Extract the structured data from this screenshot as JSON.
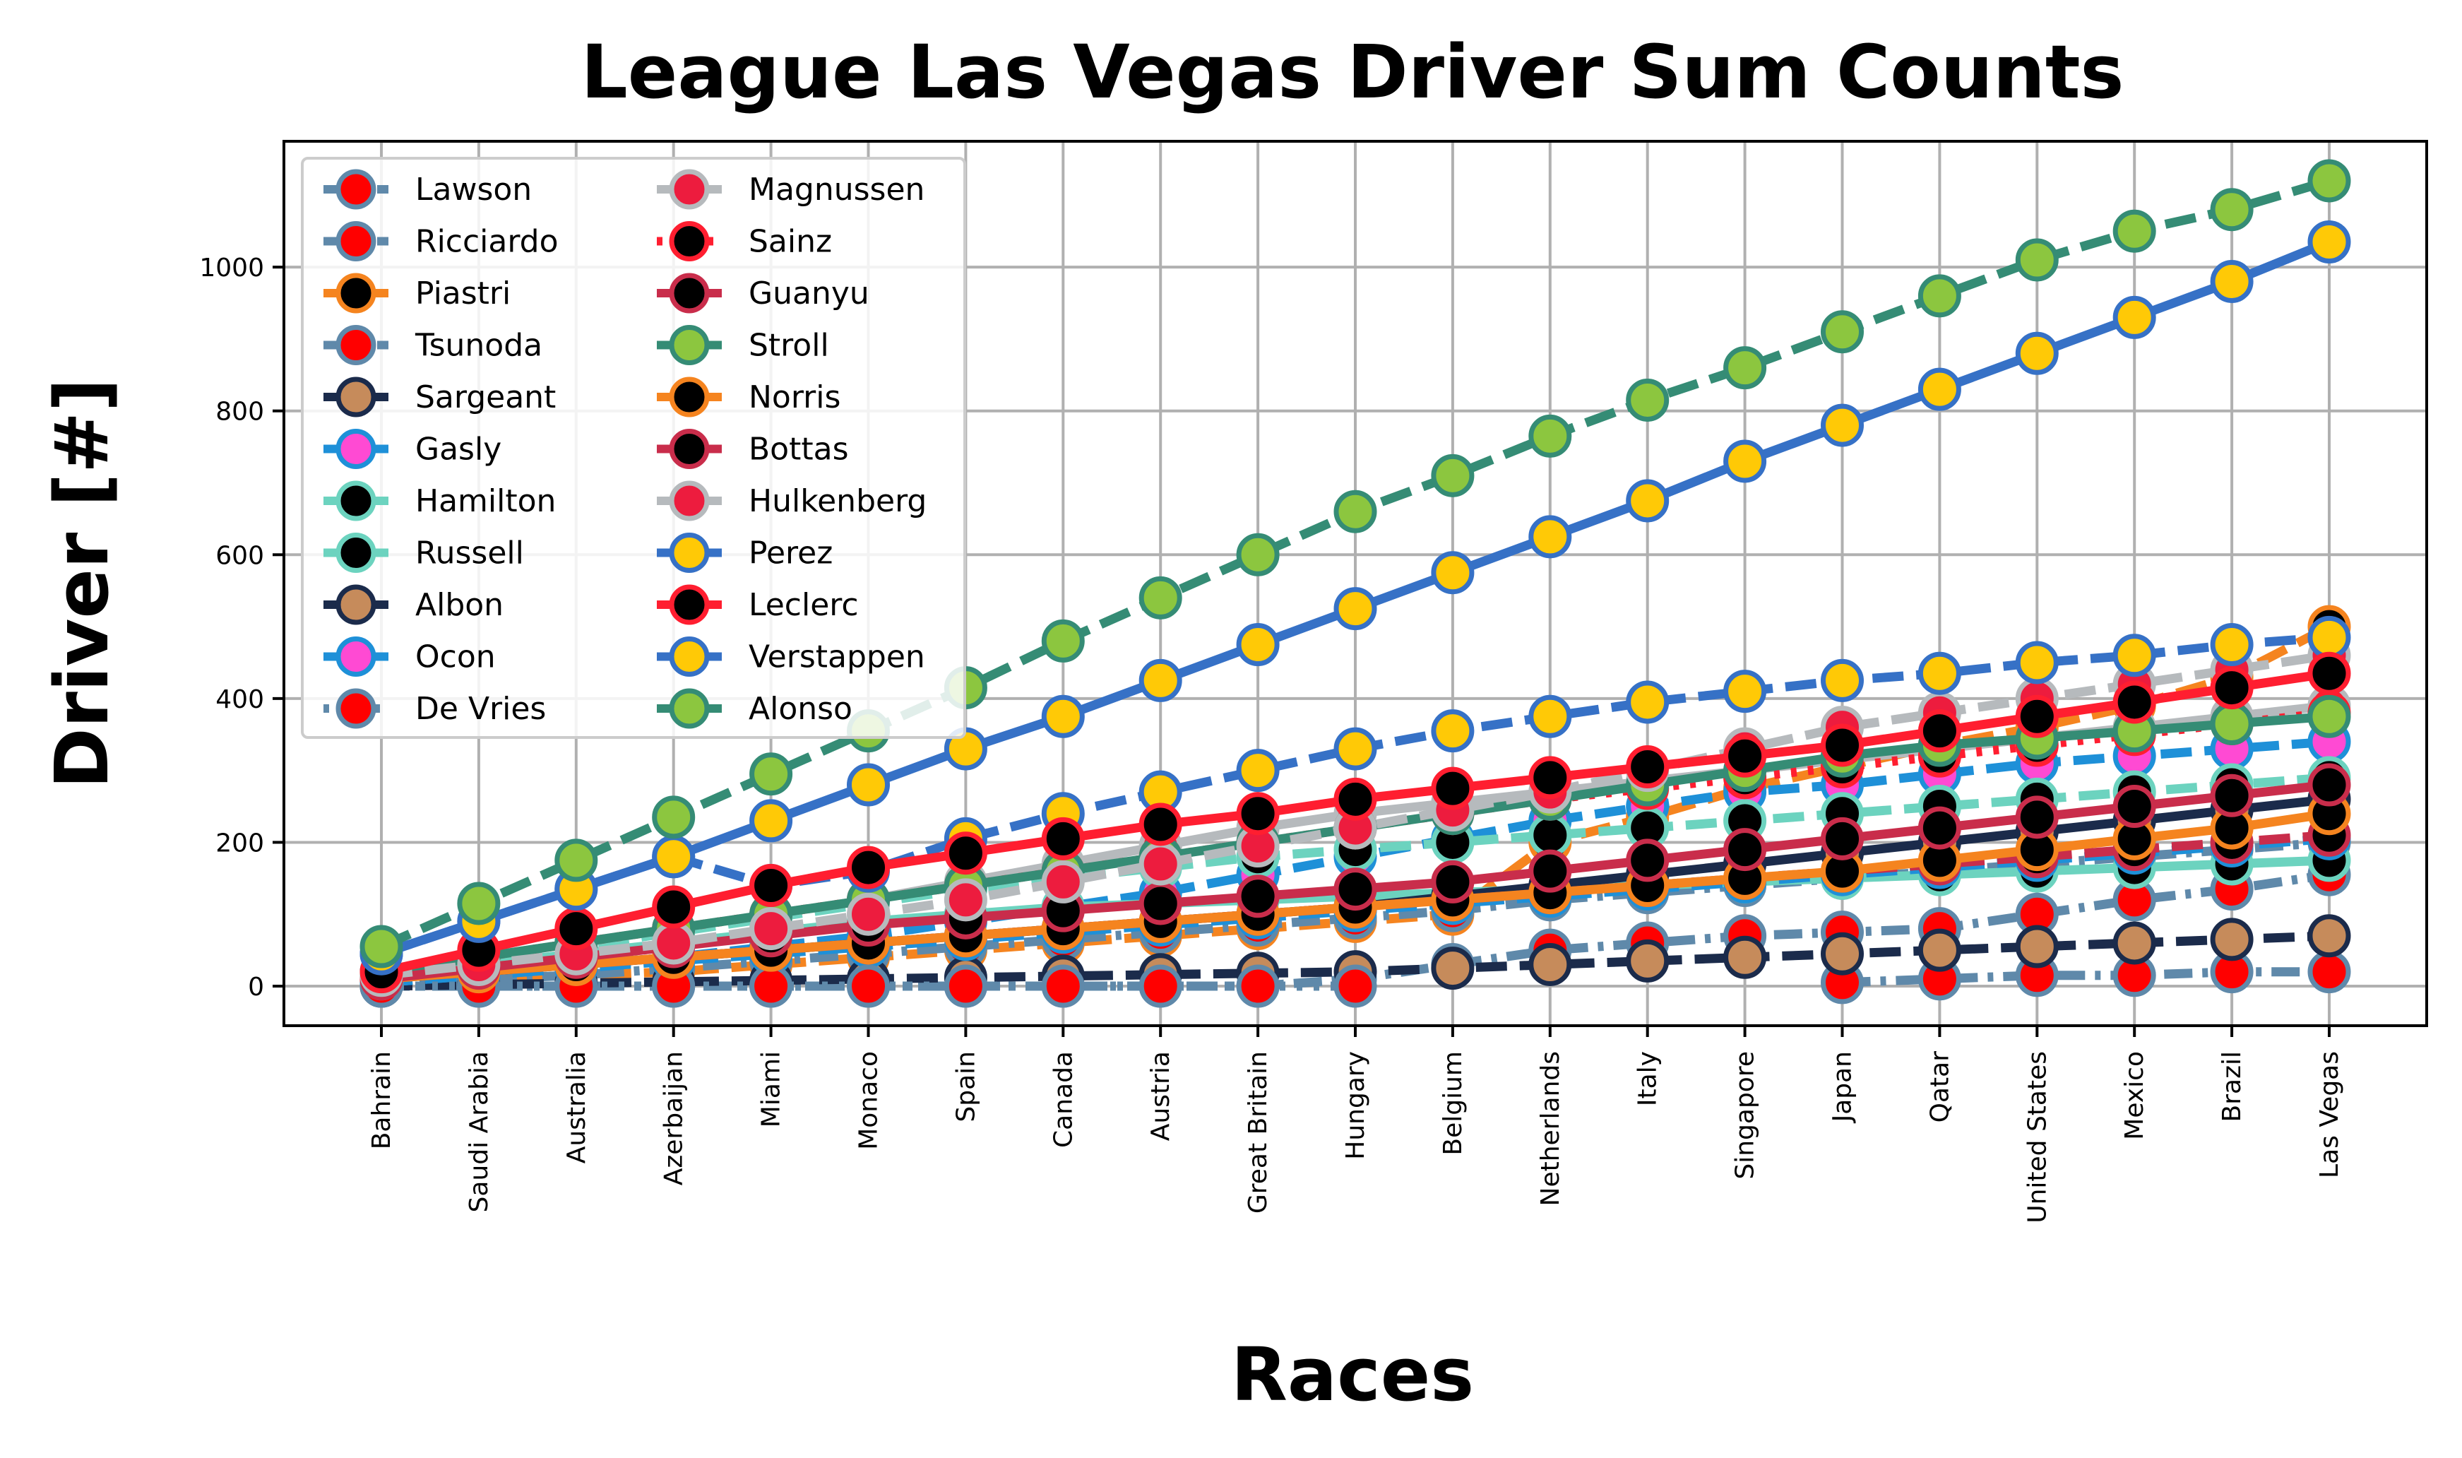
{
  "chart_data": {
    "type": "line",
    "title": "League Las Vegas Driver Sum Counts",
    "xlabel": "Races",
    "ylabel": "Driver [#]",
    "ylim": [
      -55,
      1175
    ],
    "yticks": [
      0,
      200,
      400,
      600,
      800,
      1000
    ],
    "grid": true,
    "legend_position": "top-left",
    "categories": [
      "Bahrain",
      "Saudi Arabia",
      "Australia",
      "Azerbaijan",
      "Miami",
      "Monaco",
      "Spain",
      "Canada",
      "Austria",
      "Great Britain",
      "Hungary",
      "Belgium",
      "Netherlands",
      "Italy",
      "Singapore",
      "Japan",
      "Qatar",
      "United States",
      "Mexico",
      "Brazil",
      "Las Vegas"
    ],
    "series": [
      {
        "name": "Lawson",
        "line": "#5f89aa",
        "marker": "#ff0000",
        "edge": "#5f89aa",
        "dash": "dashdot",
        "values": [
          null,
          null,
          null,
          null,
          null,
          null,
          null,
          null,
          null,
          null,
          null,
          null,
          null,
          null,
          null,
          5,
          10,
          15,
          15,
          20,
          20
        ]
      },
      {
        "name": "Ricciardo",
        "line": "#5f89aa",
        "marker": "#ff0000",
        "edge": "#5f89aa",
        "dash": "dashdot",
        "values": [
          0,
          0,
          0,
          0,
          0,
          0,
          0,
          0,
          0,
          0,
          10,
          30,
          50,
          60,
          70,
          75,
          80,
          100,
          120,
          135,
          155
        ]
      },
      {
        "name": "Piastri",
        "line": "#f5841f",
        "marker": "#000000",
        "edge": "#f5841f",
        "dash": "dashed",
        "values": [
          5,
          10,
          15,
          20,
          30,
          40,
          50,
          60,
          70,
          80,
          90,
          100,
          200,
          235,
          275,
          305,
          335,
          360,
          390,
          430,
          500
        ]
      },
      {
        "name": "Tsunoda",
        "line": "#5f89aa",
        "marker": "#ff0000",
        "edge": "#5f89aa",
        "dash": "dashdot",
        "values": [
          5,
          10,
          15,
          25,
          35,
          45,
          55,
          65,
          75,
          85,
          95,
          105,
          120,
          130,
          140,
          150,
          160,
          170,
          180,
          190,
          200
        ]
      },
      {
        "name": "Sargeant",
        "line": "#1b2b4b",
        "marker": "#c68b5b",
        "edge": "#1b2b4b",
        "dash": "dashed",
        "values": [
          0,
          2,
          4,
          6,
          8,
          10,
          12,
          14,
          16,
          18,
          20,
          25,
          30,
          35,
          40,
          45,
          50,
          55,
          60,
          65,
          70
        ]
      },
      {
        "name": "Gasly",
        "line": "#1e90d8",
        "marker": "#ff4ad3",
        "edge": "#1e90d8",
        "dash": "dashed",
        "values": [
          5,
          15,
          25,
          40,
          55,
          70,
          90,
          110,
          130,
          155,
          180,
          205,
          230,
          250,
          270,
          280,
          295,
          310,
          320,
          330,
          340
        ]
      },
      {
        "name": "Hamilton",
        "line": "#6cd3bf",
        "marker": "#000000",
        "edge": "#6cd3bf",
        "dash": "solid",
        "values": [
          15,
          30,
          45,
          60,
          75,
          90,
          100,
          110,
          115,
          120,
          125,
          130,
          135,
          140,
          145,
          150,
          155,
          160,
          165,
          170,
          175
        ]
      },
      {
        "name": "Russell",
        "line": "#6cd3bf",
        "marker": "#000000",
        "edge": "#6cd3bf",
        "dash": "dashed",
        "values": [
          15,
          35,
          55,
          75,
          95,
          115,
          135,
          150,
          165,
          180,
          190,
          200,
          210,
          220,
          230,
          240,
          250,
          260,
          270,
          280,
          290
        ]
      },
      {
        "name": "Albon",
        "line": "#1b2b4b",
        "marker": "#c68b5b",
        "edge": "#1b2b4b",
        "dash": "solid",
        "values": [
          10,
          20,
          30,
          40,
          50,
          60,
          70,
          80,
          90,
          100,
          110,
          125,
          140,
          155,
          170,
          185,
          200,
          215,
          230,
          245,
          260
        ]
      },
      {
        "name": "Ocon",
        "line": "#1e90d8",
        "marker": "#ff4ad3",
        "edge": "#1e90d8",
        "dash": "dashed",
        "values": [
          5,
          15,
          25,
          35,
          45,
          55,
          65,
          75,
          85,
          95,
          105,
          115,
          125,
          135,
          145,
          155,
          165,
          175,
          185,
          195,
          205
        ]
      },
      {
        "name": "De Vries",
        "line": "#5f89aa",
        "marker": "#ff0000",
        "edge": "#5f89aa",
        "dash": "dotted",
        "values": [
          0,
          0,
          0,
          0,
          0,
          0,
          0,
          0,
          0,
          0,
          0,
          null,
          null,
          null,
          null,
          null,
          null,
          null,
          null,
          null,
          null
        ]
      },
      {
        "name": "Magnussen",
        "line": "#b6babd",
        "marker": "#ed1c3e",
        "edge": "#b6babd",
        "dash": "solid",
        "values": [
          20,
          40,
          60,
          80,
          100,
          120,
          145,
          170,
          195,
          220,
          240,
          255,
          270,
          285,
          300,
          315,
          330,
          345,
          360,
          375,
          390
        ]
      },
      {
        "name": "Sainz",
        "line": "#ff1e30",
        "marker": "#000000",
        "edge": "#ff1e30",
        "dash": "dotted",
        "values": [
          20,
          40,
          60,
          80,
          100,
          120,
          140,
          160,
          180,
          200,
          220,
          240,
          260,
          275,
          290,
          305,
          320,
          335,
          350,
          365,
          380
        ]
      },
      {
        "name": "Guanyu",
        "line": "#c92d4b",
        "marker": "#000000",
        "edge": "#c92d4b",
        "dash": "dashed",
        "values": [
          10,
          20,
          30,
          40,
          50,
          60,
          70,
          80,
          90,
          100,
          110,
          120,
          130,
          140,
          150,
          160,
          170,
          180,
          190,
          200,
          210
        ]
      },
      {
        "name": "Stroll",
        "line": "#358c75",
        "marker": "#8cc63f",
        "edge": "#358c75",
        "dash": "solid",
        "values": [
          20,
          40,
          60,
          80,
          100,
          120,
          140,
          160,
          180,
          200,
          220,
          240,
          260,
          280,
          300,
          320,
          335,
          345,
          355,
          365,
          375
        ]
      },
      {
        "name": "Norris",
        "line": "#f5841f",
        "marker": "#000000",
        "edge": "#f5841f",
        "dash": "solid",
        "values": [
          10,
          20,
          30,
          40,
          50,
          60,
          70,
          80,
          90,
          100,
          110,
          120,
          130,
          140,
          150,
          160,
          175,
          190,
          205,
          220,
          240
        ]
      },
      {
        "name": "Bottas",
        "line": "#c92d4b",
        "marker": "#000000",
        "edge": "#c92d4b",
        "dash": "solid",
        "values": [
          10,
          25,
          40,
          55,
          70,
          85,
          95,
          105,
          115,
          125,
          135,
          145,
          160,
          175,
          190,
          205,
          220,
          235,
          250,
          265,
          280
        ]
      },
      {
        "name": "Hulkenberg",
        "line": "#b6babd",
        "marker": "#ed1c3e",
        "edge": "#b6babd",
        "dash": "dashed",
        "values": [
          15,
          30,
          45,
          60,
          80,
          100,
          120,
          145,
          170,
          195,
          220,
          245,
          270,
          300,
          330,
          360,
          380,
          400,
          420,
          440,
          460
        ]
      },
      {
        "name": "Perez",
        "line": "#3671c6",
        "marker": "#ffc906",
        "edge": "#3671c6",
        "dash": "dashed",
        "values": [
          45,
          90,
          135,
          180,
          140,
          160,
          205,
          240,
          270,
          300,
          330,
          355,
          375,
          395,
          410,
          425,
          435,
          450,
          460,
          475,
          485
        ]
      },
      {
        "name": "Leclerc",
        "line": "#ff1e30",
        "marker": "#000000",
        "edge": "#ff1e30",
        "dash": "solid",
        "values": [
          20,
          50,
          80,
          110,
          140,
          165,
          185,
          205,
          225,
          240,
          260,
          275,
          290,
          305,
          320,
          335,
          355,
          375,
          395,
          415,
          435
        ]
      },
      {
        "name": "Verstappen",
        "line": "#3671c6",
        "marker": "#ffc906",
        "edge": "#3671c6",
        "dash": "solid",
        "values": [
          45,
          90,
          135,
          180,
          230,
          280,
          330,
          375,
          425,
          475,
          525,
          575,
          625,
          675,
          730,
          780,
          830,
          880,
          930,
          980,
          1035
        ]
      },
      {
        "name": "Alonso",
        "line": "#358c75",
        "marker": "#8cc63f",
        "edge": "#358c75",
        "dash": "dashed",
        "values": [
          55,
          115,
          175,
          235,
          295,
          355,
          415,
          480,
          540,
          600,
          660,
          710,
          765,
          815,
          860,
          910,
          960,
          1010,
          1050,
          1080,
          1120
        ]
      }
    ]
  }
}
